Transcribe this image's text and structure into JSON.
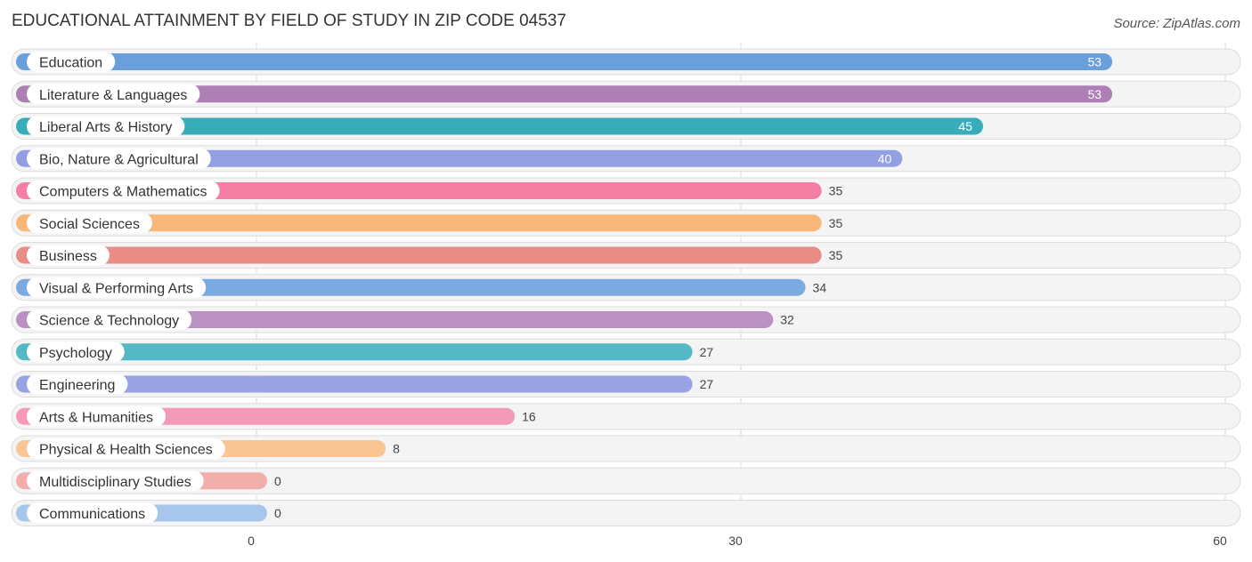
{
  "chart_data": {
    "type": "bar",
    "orientation": "horizontal",
    "title": "EDUCATIONAL ATTAINMENT BY FIELD OF STUDY IN ZIP CODE 04537",
    "source": "Source: ZipAtlas.com",
    "xlabel": "",
    "ylabel": "",
    "xlim": [
      0,
      60
    ],
    "xticks": [
      0,
      30,
      60
    ],
    "grid": true,
    "categories": [
      "Education",
      "Literature & Languages",
      "Liberal Arts & History",
      "Bio, Nature & Agricultural",
      "Computers & Mathematics",
      "Social Sciences",
      "Business",
      "Visual & Performing Arts",
      "Science & Technology",
      "Psychology",
      "Engineering",
      "Arts & Humanities",
      "Physical & Health Sciences",
      "Multidisciplinary Studies",
      "Communications"
    ],
    "values": [
      53,
      53,
      45,
      40,
      35,
      35,
      35,
      34,
      32,
      27,
      27,
      16,
      8,
      0,
      0
    ],
    "colors": [
      "#6a9fdc",
      "#ad7fb5",
      "#38adb9",
      "#939fe2",
      "#f57fa4",
      "#f8b778",
      "#ea8c86",
      "#7aaae0",
      "#bb91c3",
      "#54b8c5",
      "#99a3e2",
      "#f49ab9",
      "#f9c592",
      "#f1aeab",
      "#a6c6ec"
    ]
  }
}
